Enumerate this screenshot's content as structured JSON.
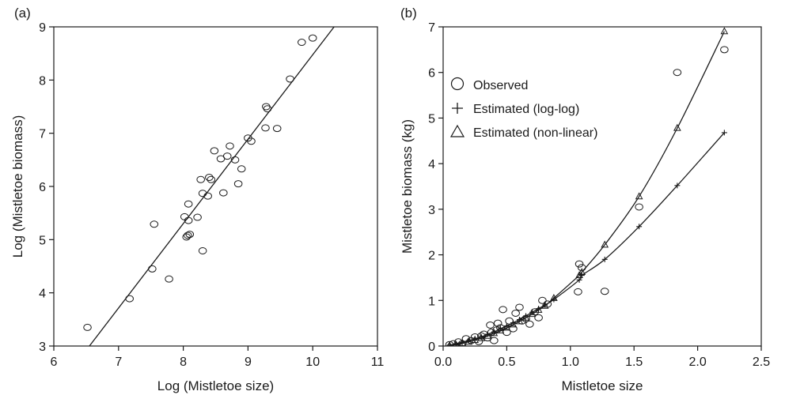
{
  "chart_data": [
    {
      "panel_label": "(a)",
      "type": "scatter",
      "xlabel": "Log (Mistletoe size)",
      "ylabel": "Log (Mistletoe biomass)",
      "xlim": [
        6,
        11
      ],
      "ylim": [
        3,
        9
      ],
      "xticks": [
        "6",
        "7",
        "8",
        "9",
        "10",
        "11"
      ],
      "yticks": [
        "3",
        "4",
        "5",
        "6",
        "7",
        "8",
        "9"
      ],
      "marker": "circle",
      "points": [
        [
          6.52,
          3.35
        ],
        [
          7.17,
          3.89
        ],
        [
          7.52,
          4.45
        ],
        [
          7.55,
          5.29
        ],
        [
          7.78,
          4.26
        ],
        [
          8.02,
          5.43
        ],
        [
          8.05,
          5.05
        ],
        [
          8.07,
          5.08
        ],
        [
          8.08,
          5.36
        ],
        [
          8.08,
          5.67
        ],
        [
          8.1,
          5.1
        ],
        [
          8.22,
          5.42
        ],
        [
          8.27,
          6.13
        ],
        [
          8.3,
          4.79
        ],
        [
          8.3,
          5.87
        ],
        [
          8.38,
          5.82
        ],
        [
          8.4,
          6.17
        ],
        [
          8.43,
          6.13
        ],
        [
          8.48,
          6.67
        ],
        [
          8.58,
          6.52
        ],
        [
          8.62,
          5.88
        ],
        [
          8.68,
          6.57
        ],
        [
          8.72,
          6.76
        ],
        [
          8.8,
          6.5
        ],
        [
          8.85,
          6.05
        ],
        [
          8.9,
          6.33
        ],
        [
          9.0,
          6.91
        ],
        [
          9.05,
          6.85
        ],
        [
          9.27,
          7.1
        ],
        [
          9.28,
          7.5
        ],
        [
          9.3,
          7.46
        ],
        [
          9.45,
          7.09
        ],
        [
          9.65,
          8.02
        ],
        [
          9.83,
          8.71
        ],
        [
          10.0,
          8.79
        ]
      ],
      "fit_line": [
        [
          6.55,
          3.0
        ],
        [
          10.33,
          9.0
        ]
      ]
    },
    {
      "panel_label": "(b)",
      "type": "scatter",
      "xlabel": "Mistletoe size",
      "ylabel": "Mistletoe biomass (kg)",
      "xlim": [
        0,
        2.5
      ],
      "ylim": [
        0,
        7
      ],
      "xticks": [
        "0.0",
        "0.5",
        "1.0",
        "1.5",
        "2.0",
        "2.5"
      ],
      "yticks": [
        "0",
        "1",
        "2",
        "3",
        "4",
        "5",
        "6",
        "7"
      ],
      "legend_position": "upper-left",
      "series": [
        {
          "name": "Observed",
          "marker": "circle",
          "points": [
            [
              0.05,
              0.03
            ],
            [
              0.08,
              0.05
            ],
            [
              0.12,
              0.09
            ],
            [
              0.15,
              0.05
            ],
            [
              0.18,
              0.16
            ],
            [
              0.22,
              0.12
            ],
            [
              0.25,
              0.2
            ],
            [
              0.28,
              0.1
            ],
            [
              0.3,
              0.22
            ],
            [
              0.32,
              0.26
            ],
            [
              0.35,
              0.18
            ],
            [
              0.37,
              0.46
            ],
            [
              0.38,
              0.3
            ],
            [
              0.4,
              0.12
            ],
            [
              0.42,
              0.35
            ],
            [
              0.43,
              0.5
            ],
            [
              0.45,
              0.4
            ],
            [
              0.47,
              0.8
            ],
            [
              0.5,
              0.3
            ],
            [
              0.52,
              0.55
            ],
            [
              0.55,
              0.38
            ],
            [
              0.57,
              0.72
            ],
            [
              0.6,
              0.85
            ],
            [
              0.62,
              0.55
            ],
            [
              0.65,
              0.6
            ],
            [
              0.68,
              0.48
            ],
            [
              0.72,
              0.75
            ],
            [
              0.75,
              0.62
            ],
            [
              0.78,
              1.0
            ],
            [
              0.82,
              0.92
            ],
            [
              1.06,
              1.19
            ],
            [
              1.07,
              1.8
            ],
            [
              1.09,
              1.72
            ],
            [
              1.27,
              1.2
            ],
            [
              1.54,
              3.05
            ],
            [
              1.84,
              6.0
            ],
            [
              2.21,
              6.5
            ]
          ]
        },
        {
          "name": "Estimated (log-log)",
          "marker": "plus",
          "points": [
            [
              0.05,
              0.02
            ],
            [
              0.1,
              0.05
            ],
            [
              0.15,
              0.08
            ],
            [
              0.2,
              0.12
            ],
            [
              0.25,
              0.16
            ],
            [
              0.3,
              0.2
            ],
            [
              0.35,
              0.26
            ],
            [
              0.4,
              0.31
            ],
            [
              0.45,
              0.38
            ],
            [
              0.5,
              0.44
            ],
            [
              0.55,
              0.51
            ],
            [
              0.6,
              0.58
            ],
            [
              0.65,
              0.66
            ],
            [
              0.7,
              0.74
            ],
            [
              0.75,
              0.82
            ],
            [
              0.8,
              0.9
            ],
            [
              0.87,
              1.02
            ],
            [
              1.07,
              1.45
            ],
            [
              1.09,
              1.55
            ],
            [
              1.27,
              1.9
            ],
            [
              1.54,
              2.62
            ],
            [
              1.84,
              3.52
            ],
            [
              2.21,
              4.68
            ]
          ]
        },
        {
          "name": "Estimated (non-linear)",
          "marker": "triangle",
          "points": [
            [
              0.05,
              0.01
            ],
            [
              0.1,
              0.03
            ],
            [
              0.15,
              0.06
            ],
            [
              0.2,
              0.09
            ],
            [
              0.25,
              0.13
            ],
            [
              0.3,
              0.17
            ],
            [
              0.35,
              0.22
            ],
            [
              0.4,
              0.28
            ],
            [
              0.45,
              0.34
            ],
            [
              0.5,
              0.4
            ],
            [
              0.55,
              0.47
            ],
            [
              0.6,
              0.54
            ],
            [
              0.65,
              0.62
            ],
            [
              0.7,
              0.7
            ],
            [
              0.75,
              0.79
            ],
            [
              0.8,
              0.88
            ],
            [
              0.87,
              1.05
            ],
            [
              1.07,
              1.55
            ],
            [
              1.09,
              1.62
            ],
            [
              1.27,
              2.22
            ],
            [
              1.54,
              3.28
            ],
            [
              1.84,
              4.78
            ],
            [
              2.21,
              6.9
            ]
          ]
        }
      ]
    }
  ]
}
